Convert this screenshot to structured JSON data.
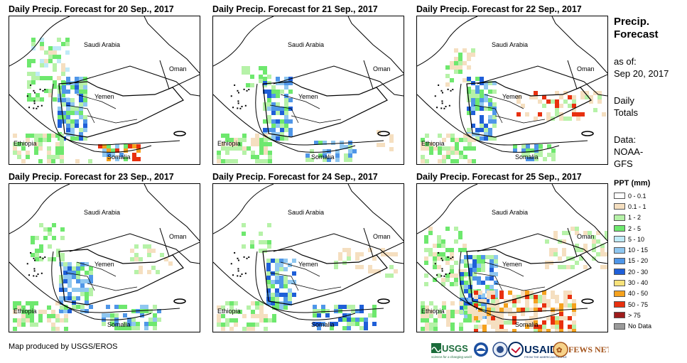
{
  "panels": [
    {
      "title": "Daily Precip. Forecast for 20  Sep., 2017"
    },
    {
      "title": "Daily Precip. Forecast for 21  Sep., 2017"
    },
    {
      "title": "Daily Precip. Forecast for 22  Sep., 2017"
    },
    {
      "title": "Daily Precip. Forecast for 23  Sep., 2017"
    },
    {
      "title": "Daily Precip. Forecast for 24  Sep., 2017"
    },
    {
      "title": "Daily Precip. Forecast for 25  Sep., 2017"
    }
  ],
  "map_labels": {
    "saudi": "Saudi Arabia",
    "oman": "Oman",
    "yemen": "Yemen",
    "ethiopia": "Ethiopia",
    "somalia": "Somalia"
  },
  "sidebar": {
    "title_line1": "Precip.",
    "title_line2": "Forecast",
    "asof_line1": "as of:",
    "asof_line2": "Sep 20, 2017",
    "daily_line1": "Daily",
    "daily_line2": "Totals",
    "data_line1": "Data:",
    "data_line2": "NOAA-",
    "data_line3": "GFS"
  },
  "legend": {
    "title": "PPT (mm)",
    "items": [
      {
        "label": "0 - 0.1",
        "color": "#ffffff"
      },
      {
        "label": "0.1 - 1",
        "color": "#f5dfc0"
      },
      {
        "label": "1 - 2",
        "color": "#b6f2a8"
      },
      {
        "label": "2 - 5",
        "color": "#6ee86e"
      },
      {
        "label": "5 - 10",
        "color": "#bfeaf7"
      },
      {
        "label": "10 - 15",
        "color": "#8fc7f0"
      },
      {
        "label": "15 - 20",
        "color": "#4f96e8"
      },
      {
        "label": "20 - 30",
        "color": "#1f5fd8"
      },
      {
        "label": "30 - 40",
        "color": "#f7e27a"
      },
      {
        "label": "40 - 50",
        "color": "#f5a21e"
      },
      {
        "label": "50 - 75",
        "color": "#e8300f"
      },
      {
        "label": "> 75",
        "color": "#9e1c1c"
      },
      {
        "label": "No Data",
        "color": "#9a9a9a"
      }
    ]
  },
  "credit": "Map produced by USGS/EROS",
  "logos": {
    "usgs": "USGS",
    "usgs_tag": "science for a changing world",
    "usaid": "USAID",
    "usaid_tag": "FROM THE AMERICAN PEOPLE",
    "fews": "FEWS NET"
  }
}
